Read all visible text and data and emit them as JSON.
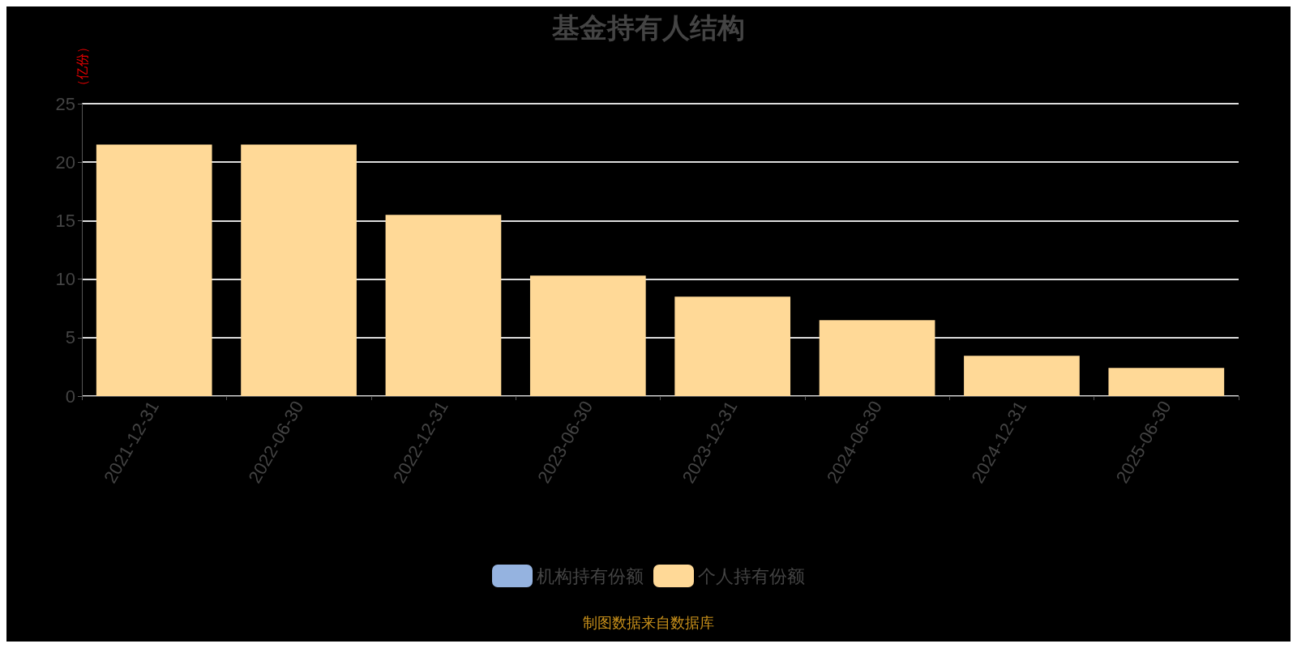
{
  "chart_data": {
    "type": "bar",
    "title": "基金持有人结构",
    "ylabel": "（亿份）",
    "categories": [
      "2021-12-31",
      "2022-06-30",
      "2022-12-31",
      "2023-06-30",
      "2023-12-31",
      "2024-06-30",
      "2024-12-31",
      "2025-06-30"
    ],
    "stacked": true,
    "series": [
      {
        "name": "机构持有份额",
        "color": "#95b3e0",
        "values": [
          0,
          0,
          0,
          0,
          0,
          0,
          0,
          0
        ]
      },
      {
        "name": "个人持有份额",
        "color": "#ffd997",
        "values": [
          21.5,
          21.5,
          15.5,
          10.3,
          8.5,
          6.5,
          3.45,
          2.4
        ]
      }
    ],
    "ylim": [
      0,
      25
    ],
    "yticks": [
      0,
      5,
      10,
      15,
      20,
      25
    ],
    "grid": "y",
    "legend": "bottom",
    "annotations": [
      "制图数据来自数据库"
    ]
  }
}
